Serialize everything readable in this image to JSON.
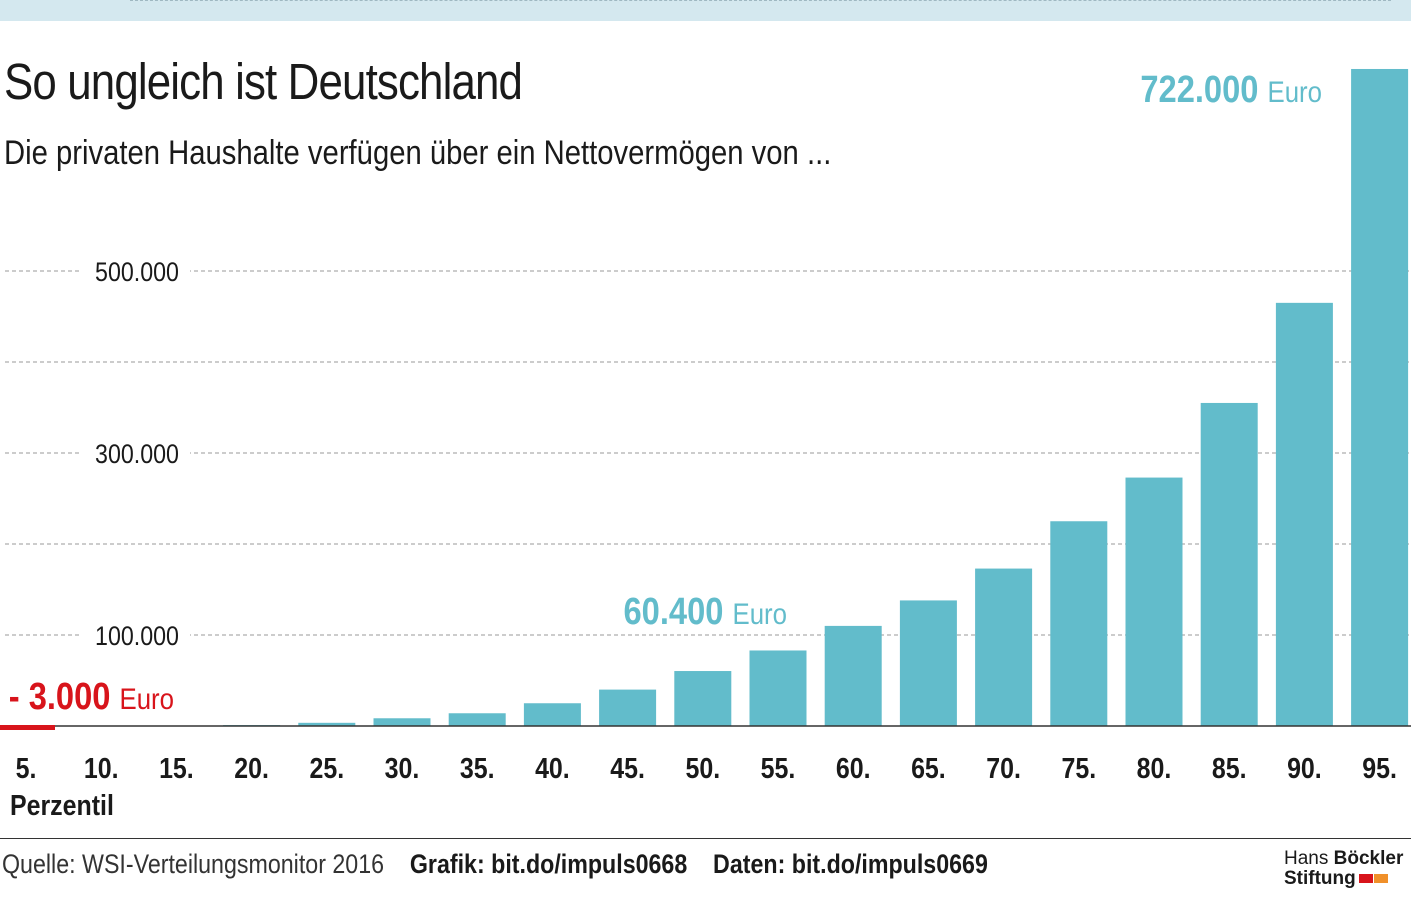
{
  "header": {
    "title": "So ungleich ist Deutschland",
    "subtitle": "Die privaten Haushalte verfügen über ein Nettovermögen von ..."
  },
  "chart_data": {
    "type": "bar",
    "categories": [
      "5.",
      "10.",
      "15.",
      "20.",
      "25.",
      "30.",
      "35.",
      "40.",
      "45.",
      "50.",
      "55.",
      "60.",
      "65.",
      "70.",
      "75.",
      "80.",
      "85.",
      "90.",
      "95."
    ],
    "values": [
      -3000,
      0,
      0,
      1000,
      3500,
      8500,
      14000,
      25000,
      40000,
      60400,
      83000,
      110000,
      138000,
      173000,
      225000,
      273000,
      355000,
      465000,
      722000
    ],
    "xlabel": "Perzentil",
    "ylabel": "",
    "ylim": [
      -3000,
      740000
    ],
    "yticks": [
      100000,
      200000,
      300000,
      400000,
      500000
    ],
    "ytick_labels": [
      "100.000",
      "",
      "300.000",
      "",
      "500.000"
    ],
    "grid": true,
    "bar_color": "#62bccb",
    "negative_color": "#d8141b",
    "annotations": [
      {
        "category": "95.",
        "value_text": "722.000",
        "unit": "Euro",
        "color": "#62bccb"
      },
      {
        "category": "50.",
        "value_text": "60.400",
        "unit": "Euro",
        "color": "#62bccb"
      },
      {
        "category": "5.",
        "value_text": "- 3.000",
        "unit": "Euro",
        "color": "#d8141b"
      }
    ]
  },
  "footer": {
    "source": "Quelle: WSI-Verteilungsmonitor 2016",
    "grafik": "Grafik: bit.do/impuls0668",
    "daten": "Daten: bit.do/impuls0669"
  },
  "logo": {
    "line1_a": "Hans",
    "line1_b": "Böckler",
    "line2": "Stiftung",
    "colors": [
      "#d8141b",
      "#f0902a"
    ]
  }
}
